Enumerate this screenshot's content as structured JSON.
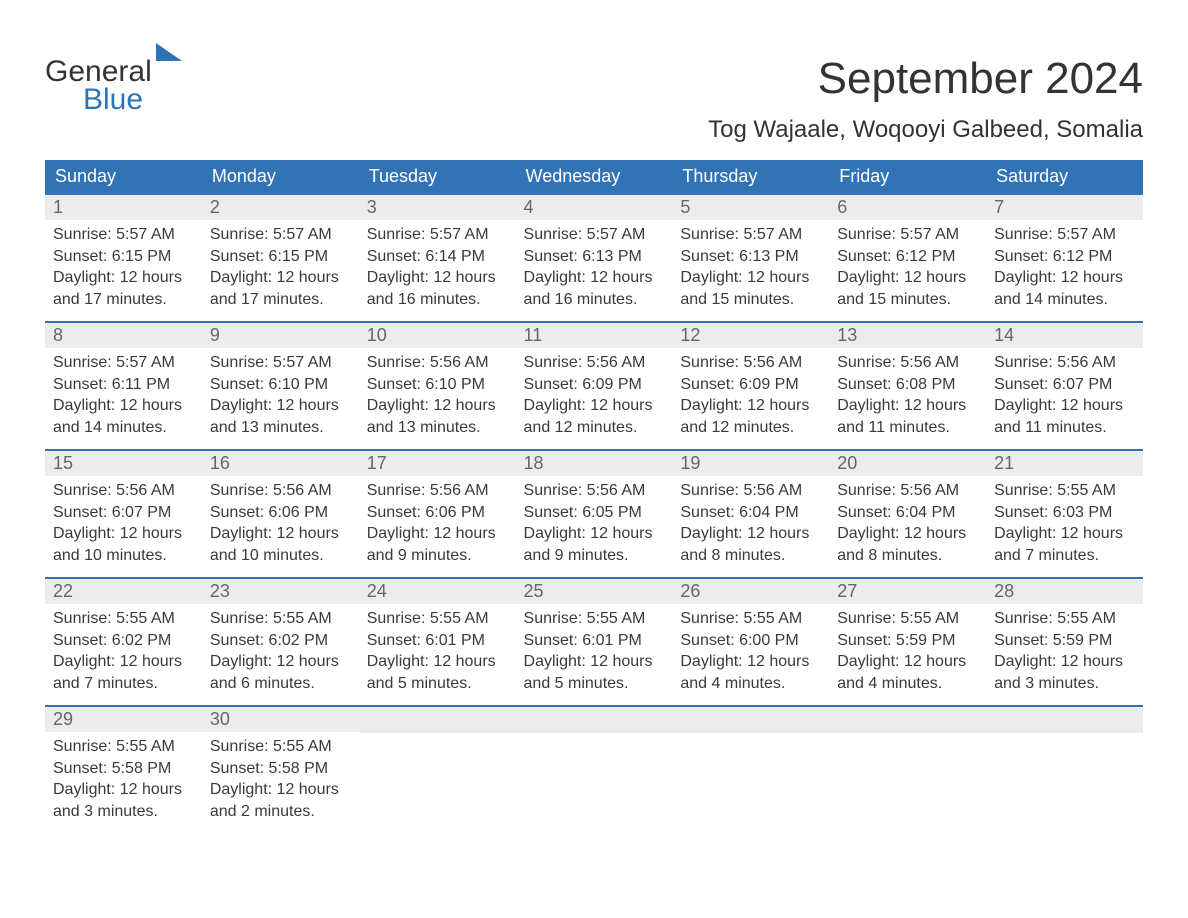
{
  "logo": {
    "general": "General",
    "blue": "Blue"
  },
  "header": {
    "month_title": "September 2024",
    "location": "Tog Wajaale, Woqooyi Galbeed, Somalia"
  },
  "colors": {
    "header_bg": "#3273b5",
    "header_text": "#ffffff",
    "daynum_bg": "#ececec",
    "daynum_text": "#666666",
    "body_text": "#3a3a3a",
    "row_border": "#3273b5",
    "page_bg": "#ffffff",
    "logo_blue": "#2b74b8"
  },
  "weekdays": [
    "Sunday",
    "Monday",
    "Tuesday",
    "Wednesday",
    "Thursday",
    "Friday",
    "Saturday"
  ],
  "weeks": [
    [
      {
        "day": "1",
        "sunrise": "Sunrise: 5:57 AM",
        "sunset": "Sunset: 6:15 PM",
        "dl1": "Daylight: 12 hours",
        "dl2": "and 17 minutes."
      },
      {
        "day": "2",
        "sunrise": "Sunrise: 5:57 AM",
        "sunset": "Sunset: 6:15 PM",
        "dl1": "Daylight: 12 hours",
        "dl2": "and 17 minutes."
      },
      {
        "day": "3",
        "sunrise": "Sunrise: 5:57 AM",
        "sunset": "Sunset: 6:14 PM",
        "dl1": "Daylight: 12 hours",
        "dl2": "and 16 minutes."
      },
      {
        "day": "4",
        "sunrise": "Sunrise: 5:57 AM",
        "sunset": "Sunset: 6:13 PM",
        "dl1": "Daylight: 12 hours",
        "dl2": "and 16 minutes."
      },
      {
        "day": "5",
        "sunrise": "Sunrise: 5:57 AM",
        "sunset": "Sunset: 6:13 PM",
        "dl1": "Daylight: 12 hours",
        "dl2": "and 15 minutes."
      },
      {
        "day": "6",
        "sunrise": "Sunrise: 5:57 AM",
        "sunset": "Sunset: 6:12 PM",
        "dl1": "Daylight: 12 hours",
        "dl2": "and 15 minutes."
      },
      {
        "day": "7",
        "sunrise": "Sunrise: 5:57 AM",
        "sunset": "Sunset: 6:12 PM",
        "dl1": "Daylight: 12 hours",
        "dl2": "and 14 minutes."
      }
    ],
    [
      {
        "day": "8",
        "sunrise": "Sunrise: 5:57 AM",
        "sunset": "Sunset: 6:11 PM",
        "dl1": "Daylight: 12 hours",
        "dl2": "and 14 minutes."
      },
      {
        "day": "9",
        "sunrise": "Sunrise: 5:57 AM",
        "sunset": "Sunset: 6:10 PM",
        "dl1": "Daylight: 12 hours",
        "dl2": "and 13 minutes."
      },
      {
        "day": "10",
        "sunrise": "Sunrise: 5:56 AM",
        "sunset": "Sunset: 6:10 PM",
        "dl1": "Daylight: 12 hours",
        "dl2": "and 13 minutes."
      },
      {
        "day": "11",
        "sunrise": "Sunrise: 5:56 AM",
        "sunset": "Sunset: 6:09 PM",
        "dl1": "Daylight: 12 hours",
        "dl2": "and 12 minutes."
      },
      {
        "day": "12",
        "sunrise": "Sunrise: 5:56 AM",
        "sunset": "Sunset: 6:09 PM",
        "dl1": "Daylight: 12 hours",
        "dl2": "and 12 minutes."
      },
      {
        "day": "13",
        "sunrise": "Sunrise: 5:56 AM",
        "sunset": "Sunset: 6:08 PM",
        "dl1": "Daylight: 12 hours",
        "dl2": "and 11 minutes."
      },
      {
        "day": "14",
        "sunrise": "Sunrise: 5:56 AM",
        "sunset": "Sunset: 6:07 PM",
        "dl1": "Daylight: 12 hours",
        "dl2": "and 11 minutes."
      }
    ],
    [
      {
        "day": "15",
        "sunrise": "Sunrise: 5:56 AM",
        "sunset": "Sunset: 6:07 PM",
        "dl1": "Daylight: 12 hours",
        "dl2": "and 10 minutes."
      },
      {
        "day": "16",
        "sunrise": "Sunrise: 5:56 AM",
        "sunset": "Sunset: 6:06 PM",
        "dl1": "Daylight: 12 hours",
        "dl2": "and 10 minutes."
      },
      {
        "day": "17",
        "sunrise": "Sunrise: 5:56 AM",
        "sunset": "Sunset: 6:06 PM",
        "dl1": "Daylight: 12 hours",
        "dl2": "and 9 minutes."
      },
      {
        "day": "18",
        "sunrise": "Sunrise: 5:56 AM",
        "sunset": "Sunset: 6:05 PM",
        "dl1": "Daylight: 12 hours",
        "dl2": "and 9 minutes."
      },
      {
        "day": "19",
        "sunrise": "Sunrise: 5:56 AM",
        "sunset": "Sunset: 6:04 PM",
        "dl1": "Daylight: 12 hours",
        "dl2": "and 8 minutes."
      },
      {
        "day": "20",
        "sunrise": "Sunrise: 5:56 AM",
        "sunset": "Sunset: 6:04 PM",
        "dl1": "Daylight: 12 hours",
        "dl2": "and 8 minutes."
      },
      {
        "day": "21",
        "sunrise": "Sunrise: 5:55 AM",
        "sunset": "Sunset: 6:03 PM",
        "dl1": "Daylight: 12 hours",
        "dl2": "and 7 minutes."
      }
    ],
    [
      {
        "day": "22",
        "sunrise": "Sunrise: 5:55 AM",
        "sunset": "Sunset: 6:02 PM",
        "dl1": "Daylight: 12 hours",
        "dl2": "and 7 minutes."
      },
      {
        "day": "23",
        "sunrise": "Sunrise: 5:55 AM",
        "sunset": "Sunset: 6:02 PM",
        "dl1": "Daylight: 12 hours",
        "dl2": "and 6 minutes."
      },
      {
        "day": "24",
        "sunrise": "Sunrise: 5:55 AM",
        "sunset": "Sunset: 6:01 PM",
        "dl1": "Daylight: 12 hours",
        "dl2": "and 5 minutes."
      },
      {
        "day": "25",
        "sunrise": "Sunrise: 5:55 AM",
        "sunset": "Sunset: 6:01 PM",
        "dl1": "Daylight: 12 hours",
        "dl2": "and 5 minutes."
      },
      {
        "day": "26",
        "sunrise": "Sunrise: 5:55 AM",
        "sunset": "Sunset: 6:00 PM",
        "dl1": "Daylight: 12 hours",
        "dl2": "and 4 minutes."
      },
      {
        "day": "27",
        "sunrise": "Sunrise: 5:55 AM",
        "sunset": "Sunset: 5:59 PM",
        "dl1": "Daylight: 12 hours",
        "dl2": "and 4 minutes."
      },
      {
        "day": "28",
        "sunrise": "Sunrise: 5:55 AM",
        "sunset": "Sunset: 5:59 PM",
        "dl1": "Daylight: 12 hours",
        "dl2": "and 3 minutes."
      }
    ],
    [
      {
        "day": "29",
        "sunrise": "Sunrise: 5:55 AM",
        "sunset": "Sunset: 5:58 PM",
        "dl1": "Daylight: 12 hours",
        "dl2": "and 3 minutes."
      },
      {
        "day": "30",
        "sunrise": "Sunrise: 5:55 AM",
        "sunset": "Sunset: 5:58 PM",
        "dl1": "Daylight: 12 hours",
        "dl2": "and 2 minutes."
      },
      {
        "day": "",
        "sunrise": "",
        "sunset": "",
        "dl1": "",
        "dl2": ""
      },
      {
        "day": "",
        "sunrise": "",
        "sunset": "",
        "dl1": "",
        "dl2": ""
      },
      {
        "day": "",
        "sunrise": "",
        "sunset": "",
        "dl1": "",
        "dl2": ""
      },
      {
        "day": "",
        "sunrise": "",
        "sunset": "",
        "dl1": "",
        "dl2": ""
      },
      {
        "day": "",
        "sunrise": "",
        "sunset": "",
        "dl1": "",
        "dl2": ""
      }
    ]
  ]
}
